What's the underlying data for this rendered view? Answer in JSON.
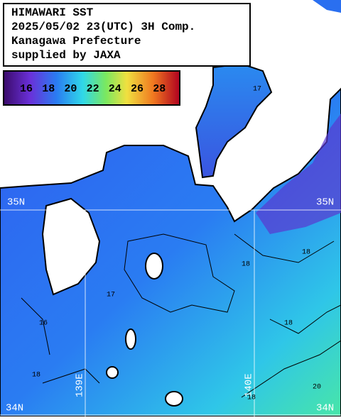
{
  "header": {
    "lines": [
      "HIMAWARI SST",
      "2025/05/02 23(UTC) 3H Comp.",
      "Kanagawa Prefecture",
      "supplied by JAXA"
    ]
  },
  "colorbar": {
    "labels": [
      "16",
      "18",
      "20",
      "22",
      "24",
      "26",
      "28"
    ]
  },
  "grid_labels": {
    "lat_top_left": "35N",
    "lat_top_right": "35N",
    "lat_bottom_left": "34N",
    "lat_bottom_right": "34N",
    "lon_left": "139E",
    "lon_right": "140E"
  },
  "contour_labels": [
    "17",
    "18",
    "17",
    "16",
    "18",
    "18",
    "18",
    "20",
    "18"
  ]
}
